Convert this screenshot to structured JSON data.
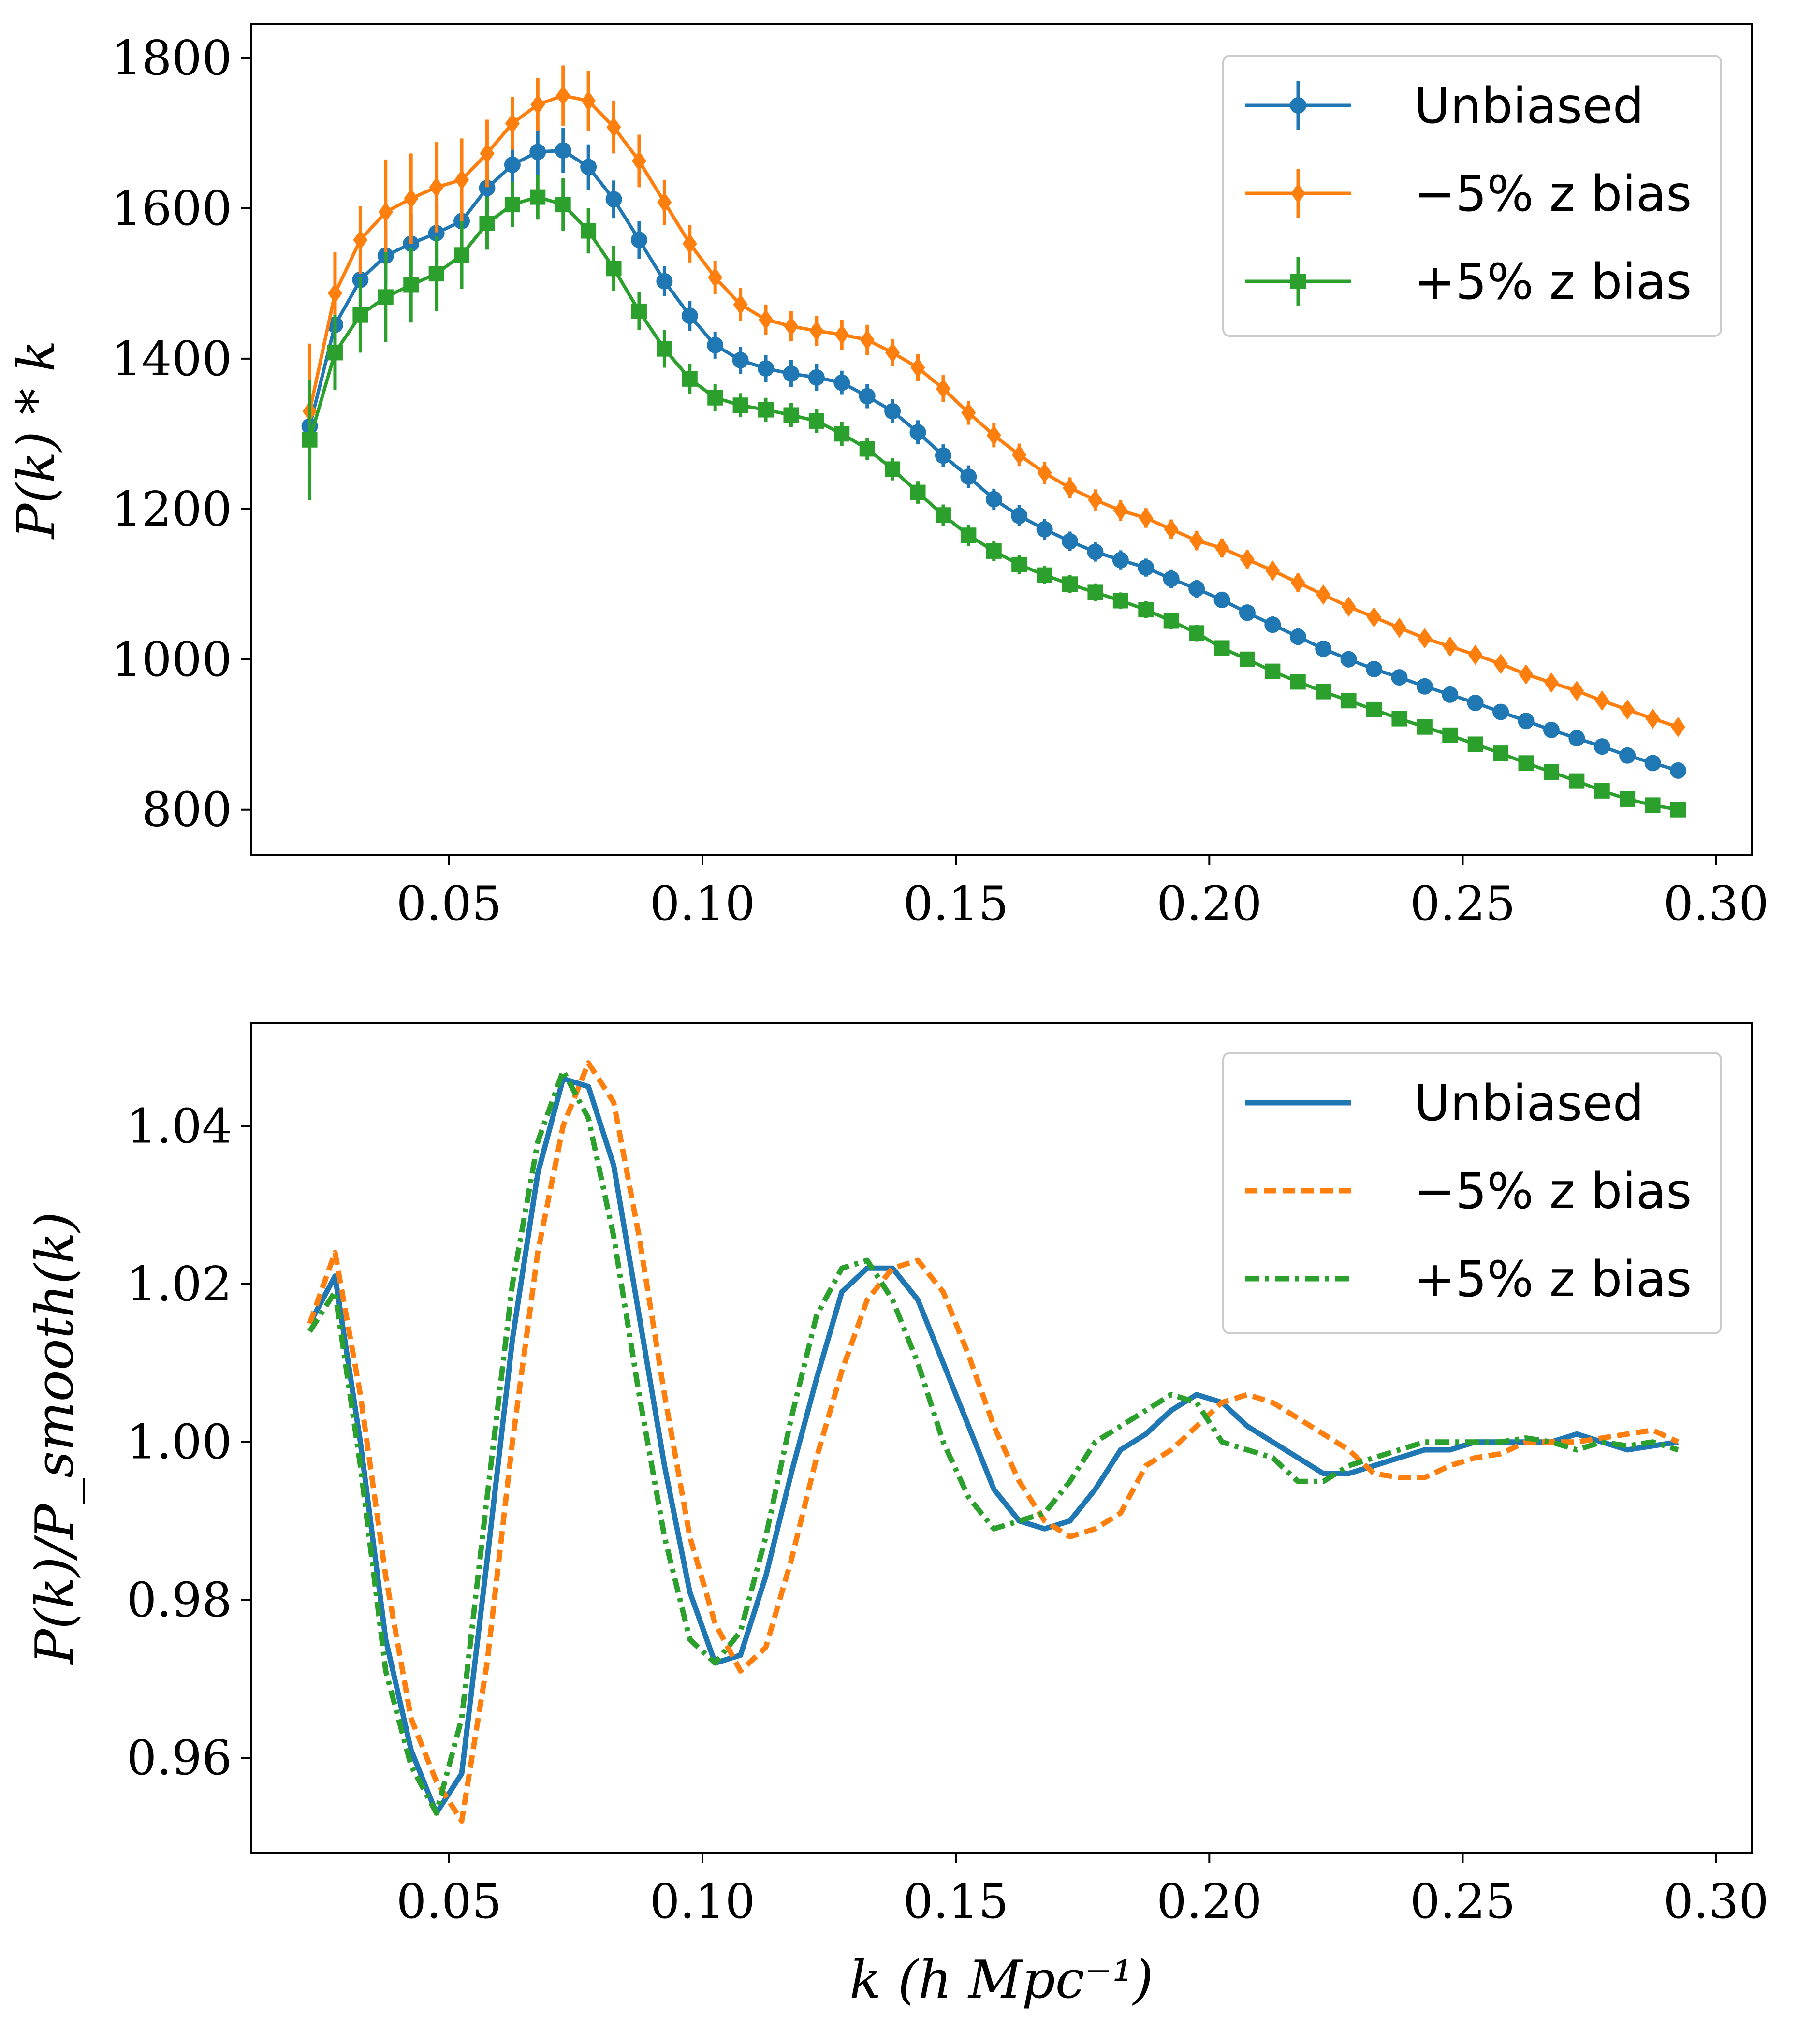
{
  "colors": {
    "blue": "#1f77b4",
    "orange": "#ff7f0e",
    "green": "#2ca02c"
  },
  "chart_data": [
    {
      "type": "line",
      "panel": "top",
      "title": "",
      "xlabel": "",
      "ylabel": "P(k) * k",
      "xlim": [
        0.011,
        0.307
      ],
      "ylim": [
        740,
        1845
      ],
      "xticks": [
        0.05,
        0.1,
        0.15,
        0.2,
        0.25,
        0.3
      ],
      "xtick_labels": [
        "0.05",
        "0.10",
        "0.15",
        "0.20",
        "0.25",
        "0.30"
      ],
      "yticks": [
        800,
        1000,
        1200,
        1400,
        1600,
        1800
      ],
      "ytick_labels": [
        "800",
        "1000",
        "1200",
        "1400",
        "1600",
        "1800"
      ],
      "grid": false,
      "legend_position": "top-right",
      "x": [
        0.0225,
        0.0275,
        0.0325,
        0.0375,
        0.0425,
        0.0475,
        0.0525,
        0.0575,
        0.0625,
        0.0675,
        0.0725,
        0.0775,
        0.0825,
        0.0875,
        0.0925,
        0.0975,
        0.1025,
        0.1075,
        0.1125,
        0.1175,
        0.1225,
        0.1275,
        0.1325,
        0.1375,
        0.1425,
        0.1475,
        0.1525,
        0.1575,
        0.1625,
        0.1675,
        0.1725,
        0.1775,
        0.1825,
        0.1875,
        0.1925,
        0.1975,
        0.2025,
        0.2075,
        0.2125,
        0.2175,
        0.2225,
        0.2275,
        0.2325,
        0.2375,
        0.2425,
        0.2475,
        0.2525,
        0.2575,
        0.2625,
        0.2675,
        0.2725,
        0.2775,
        0.2825,
        0.2875,
        0.2925
      ],
      "series": [
        {
          "name": "Unbiased",
          "marker": "circle",
          "color": "#1f77b4",
          "values": [
            1310,
            1445,
            1505,
            1537,
            1553,
            1567,
            1583,
            1627,
            1658,
            1675,
            1677,
            1655,
            1612,
            1558,
            1503,
            1457,
            1418,
            1398,
            1387,
            1380,
            1375,
            1368,
            1350,
            1330,
            1302,
            1271,
            1243,
            1213,
            1191,
            1173,
            1157,
            1143,
            1132,
            1122,
            1107,
            1094,
            1079,
            1062,
            1046,
            1030,
            1014,
            1000,
            987,
            976,
            964,
            953,
            942,
            930,
            918,
            906,
            895,
            884,
            872,
            862,
            852
          ],
          "errors": [
            45,
            40,
            35,
            40,
            40,
            40,
            35,
            30,
            25,
            30,
            30,
            30,
            25,
            25,
            20,
            20,
            18,
            18,
            18,
            18,
            18,
            16,
            16,
            16,
            16,
            15,
            15,
            14,
            14,
            14,
            13,
            13,
            13,
            12,
            12,
            12,
            11,
            11,
            11,
            11,
            10,
            10,
            10,
            10,
            10,
            10,
            9,
            9,
            9,
            9,
            9,
            8,
            8,
            8,
            8
          ]
        },
        {
          "name": "−5% z bias",
          "marker": "diamond",
          "color": "#ff7f0e",
          "values": [
            1330,
            1487,
            1558,
            1595,
            1613,
            1628,
            1638,
            1673,
            1713,
            1738,
            1750,
            1743,
            1708,
            1663,
            1608,
            1553,
            1508,
            1472,
            1452,
            1443,
            1437,
            1432,
            1425,
            1408,
            1388,
            1360,
            1328,
            1298,
            1272,
            1248,
            1228,
            1212,
            1198,
            1188,
            1173,
            1158,
            1148,
            1133,
            1118,
            1102,
            1086,
            1070,
            1056,
            1042,
            1028,
            1017,
            1006,
            994,
            980,
            969,
            958,
            945,
            933,
            921,
            910
          ],
          "errors": [
            90,
            55,
            45,
            70,
            60,
            60,
            55,
            45,
            35,
            35,
            40,
            40,
            35,
            35,
            30,
            25,
            22,
            22,
            20,
            20,
            20,
            20,
            20,
            18,
            18,
            18,
            16,
            16,
            15,
            15,
            14,
            14,
            14,
            13,
            13,
            13,
            12,
            12,
            12,
            12,
            11,
            11,
            11,
            11,
            10,
            10,
            10,
            10,
            10,
            9,
            9,
            9,
            9,
            9,
            8
          ]
        },
        {
          "name": "+5% z bias",
          "marker": "square",
          "color": "#2ca02c",
          "values": [
            1292,
            1408,
            1458,
            1482,
            1498,
            1513,
            1538,
            1580,
            1605,
            1615,
            1605,
            1570,
            1520,
            1463,
            1413,
            1373,
            1348,
            1338,
            1332,
            1325,
            1317,
            1300,
            1280,
            1253,
            1222,
            1192,
            1165,
            1144,
            1126,
            1112,
            1100,
            1089,
            1078,
            1066,
            1051,
            1035,
            1015,
            1000,
            984,
            970,
            957,
            945,
            933,
            921,
            910,
            899,
            887,
            875,
            862,
            850,
            838,
            825,
            814,
            806,
            800
          ],
          "errors": [
            80,
            50,
            50,
            60,
            50,
            50,
            45,
            35,
            30,
            30,
            35,
            30,
            30,
            25,
            25,
            20,
            18,
            16,
            16,
            16,
            16,
            16,
            15,
            15,
            15,
            14,
            14,
            13,
            13,
            12,
            12,
            12,
            11,
            11,
            11,
            11,
            10,
            10,
            10,
            10,
            9,
            9,
            9,
            9,
            9,
            9,
            9,
            8,
            8,
            8,
            8,
            8,
            8,
            8,
            8
          ]
        }
      ]
    },
    {
      "type": "line",
      "panel": "bottom",
      "title": "",
      "xlabel": "k (h Mpc⁻¹)",
      "ylabel": "P(k)/P_smooth(k)",
      "xlim": [
        0.011,
        0.307
      ],
      "ylim": [
        0.948,
        1.053
      ],
      "xticks": [
        0.05,
        0.1,
        0.15,
        0.2,
        0.25,
        0.3
      ],
      "xtick_labels": [
        "0.05",
        "0.10",
        "0.15",
        "0.20",
        "0.25",
        "0.30"
      ],
      "yticks": [
        0.96,
        0.98,
        1.0,
        1.02,
        1.04
      ],
      "ytick_labels": [
        "0.96",
        "0.98",
        "1.00",
        "1.02",
        "1.04"
      ],
      "grid": false,
      "legend_position": "top-right",
      "x": [
        0.0225,
        0.0275,
        0.0325,
        0.0375,
        0.0425,
        0.0475,
        0.0525,
        0.0575,
        0.0625,
        0.0675,
        0.0725,
        0.0775,
        0.0825,
        0.0875,
        0.0925,
        0.0975,
        0.1025,
        0.1075,
        0.1125,
        0.1175,
        0.1225,
        0.1275,
        0.1325,
        0.1375,
        0.1425,
        0.1475,
        0.1525,
        0.1575,
        0.1625,
        0.1675,
        0.1725,
        0.1775,
        0.1825,
        0.1875,
        0.1925,
        0.1975,
        0.2025,
        0.2075,
        0.2125,
        0.2175,
        0.2225,
        0.2275,
        0.2325,
        0.2375,
        0.2425,
        0.2475,
        0.2525,
        0.2575,
        0.2625,
        0.2675,
        0.2725,
        0.2775,
        0.2825,
        0.2875,
        0.2925
      ],
      "series": [
        {
          "name": "Unbiased",
          "linestyle": "solid",
          "color": "#1f77b4",
          "values": [
            1.015,
            1.021,
            1.0,
            0.975,
            0.961,
            0.953,
            0.958,
            0.985,
            1.013,
            1.034,
            1.046,
            1.045,
            1.035,
            1.016,
            0.997,
            0.981,
            0.972,
            0.973,
            0.983,
            0.996,
            1.008,
            1.019,
            1.022,
            1.022,
            1.018,
            1.01,
            1.002,
            0.994,
            0.99,
            0.989,
            0.99,
            0.994,
            0.999,
            1.001,
            1.004,
            1.006,
            1.005,
            1.002,
            1.0,
            0.998,
            0.996,
            0.996,
            0.997,
            0.998,
            0.999,
            0.999,
            1.0,
            1.0,
            1.0,
            1.0,
            1.001,
            1.0,
            0.999,
            0.9995,
            1.0
          ]
        },
        {
          "name": "−5% z bias",
          "linestyle": "dashed",
          "color": "#ff7f0e",
          "values": [
            1.015,
            1.024,
            1.006,
            0.983,
            0.965,
            0.957,
            0.952,
            0.972,
            1.0,
            1.024,
            1.04,
            1.048,
            1.043,
            1.026,
            1.006,
            0.988,
            0.977,
            0.971,
            0.974,
            0.985,
            0.998,
            1.009,
            1.018,
            1.022,
            1.023,
            1.019,
            1.011,
            1.002,
            0.995,
            0.99,
            0.988,
            0.989,
            0.991,
            0.997,
            0.999,
            1.002,
            1.005,
            1.006,
            1.005,
            1.003,
            1.001,
            0.999,
            0.996,
            0.9955,
            0.9955,
            0.997,
            0.998,
            0.9985,
            1.0,
            1.0,
            1.0,
            1.0005,
            1.001,
            1.0015,
            1.0
          ]
        },
        {
          "name": "+5% z bias",
          "linestyle": "dashdot",
          "color": "#2ca02c",
          "values": [
            1.014,
            1.019,
            0.997,
            0.971,
            0.959,
            0.953,
            0.965,
            0.993,
            1.02,
            1.038,
            1.047,
            1.041,
            1.026,
            1.006,
            0.988,
            0.975,
            0.972,
            0.976,
            0.988,
            1.003,
            1.016,
            1.022,
            1.023,
            1.018,
            1.01,
            1.0,
            0.993,
            0.989,
            0.99,
            0.991,
            0.995,
            1.0,
            1.002,
            1.004,
            1.006,
            1.005,
            1.0,
            0.999,
            0.998,
            0.995,
            0.995,
            0.997,
            0.998,
            0.999,
            1.0,
            1.0,
            1.0,
            1.0,
            1.0005,
            1.0,
            0.999,
            1.0,
            0.9995,
            1.0,
            0.999
          ]
        }
      ]
    }
  ]
}
